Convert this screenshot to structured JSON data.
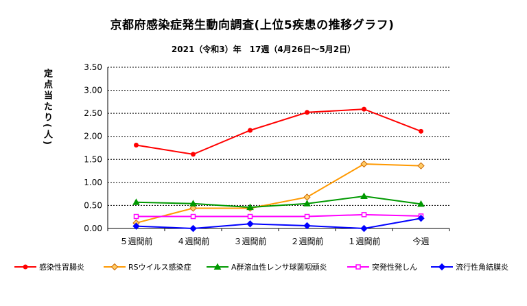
{
  "title": "京都府感染症発生動向調査(上位5疾患の推移グラフ)",
  "subtitle": "2021（令和3）年　17週（4月26日～5月2日）",
  "chart_data": {
    "type": "line",
    "ylabel": "定点当たり(人)",
    "categories": [
      "５週間前",
      "４週間前",
      "３週間前",
      "２週間前",
      "１週間前",
      "今週"
    ],
    "ylim": [
      0,
      3.5
    ],
    "yticks": [
      "0.00",
      "0.50",
      "1.00",
      "1.50",
      "2.00",
      "2.50",
      "3.00",
      "3.50"
    ],
    "grid": true,
    "legend_position": "bottom",
    "series": [
      {
        "name": "感染性胃腸炎",
        "color": "#ff0000",
        "marker": "circle",
        "values": [
          1.81,
          1.61,
          2.13,
          2.52,
          2.59,
          2.11
        ]
      },
      {
        "name": "RSウイルス感染症",
        "color": "#ff9900",
        "marker": "diamond",
        "values": [
          0.12,
          0.44,
          0.44,
          0.68,
          1.4,
          1.36
        ]
      },
      {
        "name": "A群溶血性レンサ球菌咽頭炎",
        "color": "#009900",
        "marker": "triangle",
        "values": [
          0.57,
          0.54,
          0.46,
          0.54,
          0.7,
          0.53
        ]
      },
      {
        "name": "突発性発しん",
        "color": "#ff00ff",
        "marker": "square",
        "values": [
          0.26,
          0.26,
          0.26,
          0.26,
          0.3,
          0.27
        ]
      },
      {
        "name": "流行性角結膜炎",
        "color": "#0000ff",
        "marker": "diamond",
        "values": [
          0.05,
          0.0,
          0.1,
          0.06,
          0.0,
          0.22
        ]
      }
    ]
  }
}
